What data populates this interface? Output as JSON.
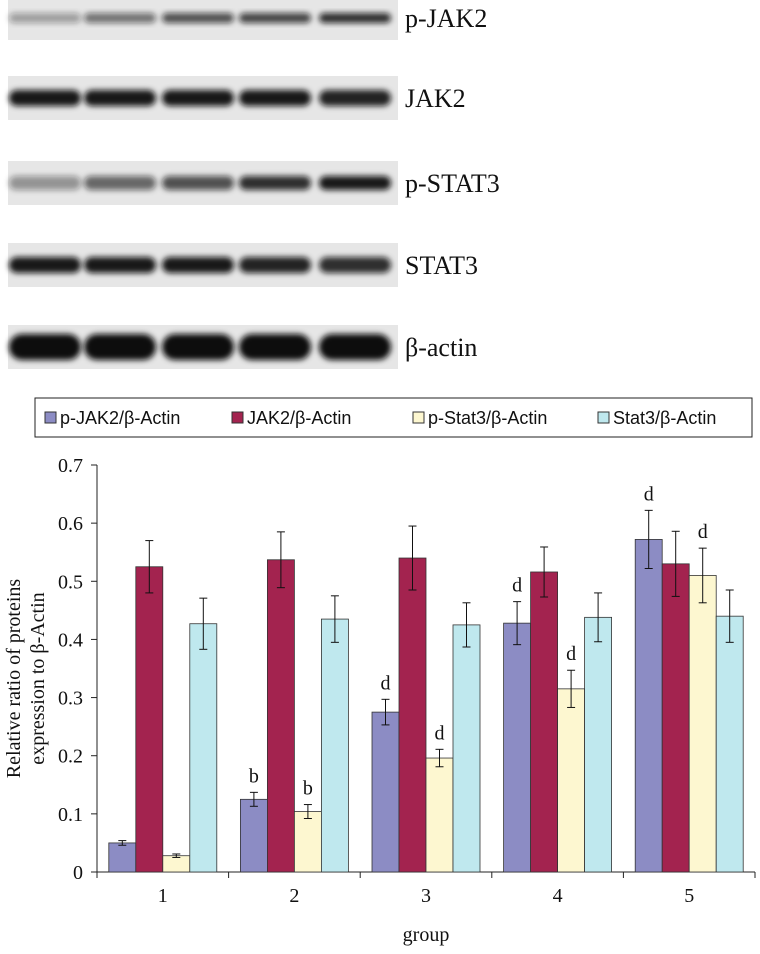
{
  "blot": {
    "labels": [
      "p-JAK2",
      "JAK2",
      "p-STAT3",
      "STAT3",
      "β-actin"
    ]
  },
  "chart_data": {
    "type": "bar",
    "y_label": [
      "Relative ratio of proteins",
      "expression  to β-Actin"
    ],
    "x_label": "group",
    "categories": [
      "1",
      "2",
      "3",
      "4",
      "5"
    ],
    "ylim": [
      0,
      0.7
    ],
    "yticks": [
      0,
      0.1,
      0.2,
      0.3,
      0.4,
      0.5,
      0.6,
      0.7
    ],
    "legend": "top",
    "series": [
      {
        "name": "p-JAK2/β-Actin",
        "color": "#8c8cc4",
        "values": [
          0.05,
          0.125,
          0.275,
          0.428,
          0.572
        ],
        "errors": [
          0.004,
          0.012,
          0.022,
          0.037,
          0.05
        ],
        "annotations": [
          null,
          "b",
          "d",
          "d",
          "d"
        ]
      },
      {
        "name": "JAK2/β-Actin",
        "color": "#a3234f",
        "values": [
          0.525,
          0.537,
          0.54,
          0.516,
          0.53
        ],
        "errors": [
          0.045,
          0.048,
          0.055,
          0.043,
          0.056
        ],
        "annotations": [
          null,
          null,
          null,
          null,
          null
        ]
      },
      {
        "name": "p-Stat3/β-Actin",
        "color": "#fdf7d0",
        "values": [
          0.028,
          0.104,
          0.196,
          0.315,
          0.51
        ],
        "errors": [
          0.003,
          0.012,
          0.015,
          0.032,
          0.047
        ],
        "annotations": [
          null,
          "b",
          "d",
          "d",
          "d"
        ]
      },
      {
        "name": "Stat3/β-Actin",
        "color": "#bfe8ee",
        "values": [
          0.427,
          0.435,
          0.425,
          0.438,
          0.44
        ],
        "errors": [
          0.044,
          0.04,
          0.038,
          0.042,
          0.045
        ],
        "annotations": [
          null,
          null,
          null,
          null,
          null
        ]
      }
    ]
  }
}
